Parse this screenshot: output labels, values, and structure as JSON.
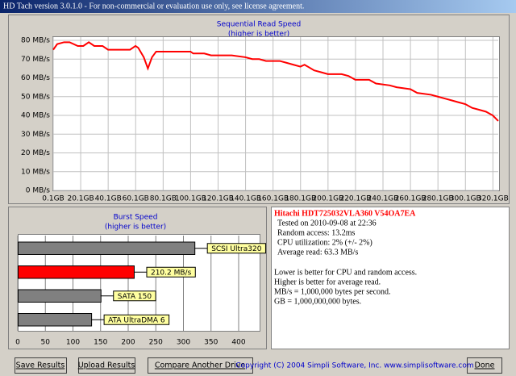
{
  "window": {
    "title": "HD Tach version 3.0.1.0  - For non-commercial or evaluation use only, see license agreement."
  },
  "chart_data": [
    {
      "type": "line",
      "title": "Sequential Read Speed",
      "subtitle": "(higher is better)",
      "color": "#ff0000",
      "grid": true,
      "x": [
        0.1,
        3,
        8,
        12,
        18,
        22,
        26,
        30,
        36,
        40,
        50,
        56,
        60,
        62,
        66,
        69,
        72,
        75,
        90,
        100,
        102,
        110,
        115,
        130,
        140,
        145,
        150,
        155,
        165,
        170,
        175,
        180,
        183,
        190,
        195,
        200,
        210,
        215,
        220,
        230,
        235,
        245,
        250,
        260,
        265,
        275,
        280,
        285,
        290,
        295,
        300,
        305,
        310,
        315,
        320,
        324
      ],
      "values": [
        75,
        78,
        79,
        79,
        77,
        77,
        79,
        77,
        77,
        75,
        75,
        75,
        77,
        76,
        71,
        65,
        71,
        74,
        74,
        74,
        73,
        73,
        72,
        72,
        71,
        70,
        70,
        69,
        69,
        68,
        67,
        66,
        67,
        64,
        63,
        62,
        62,
        61,
        59,
        59,
        57,
        56,
        55,
        54,
        52,
        51,
        50,
        49,
        48,
        47,
        46,
        44,
        43,
        42,
        40,
        37
      ],
      "xlim": [
        0.1,
        324
      ],
      "ylim": [
        0,
        80
      ],
      "xticks": [
        {
          "value": 0.1,
          "label": "0.1GB"
        },
        {
          "value": 20.1,
          "label": "20.1GB"
        },
        {
          "value": 40.1,
          "label": "40.1GB"
        },
        {
          "value": 60.1,
          "label": "60.1GB"
        },
        {
          "value": 80.1,
          "label": "80.1GB"
        },
        {
          "value": 100.1,
          "label": "100.1GB"
        },
        {
          "value": 120.1,
          "label": "120.1GB"
        },
        {
          "value": 140.1,
          "label": "140.1GB"
        },
        {
          "value": 160.1,
          "label": "160.1GB"
        },
        {
          "value": 180.1,
          "label": "180.1GB"
        },
        {
          "value": 200.1,
          "label": "200.1GB"
        },
        {
          "value": 220.1,
          "label": "220.1GB"
        },
        {
          "value": 240.1,
          "label": "240.1GB"
        },
        {
          "value": 260.1,
          "label": "260.1GB"
        },
        {
          "value": 280.1,
          "label": "280.1GB"
        },
        {
          "value": 300.1,
          "label": "300.1GB"
        },
        {
          "value": 320.1,
          "label": "320.1GB"
        }
      ],
      "yticks": [
        {
          "value": 0,
          "label": "0 MB/s"
        },
        {
          "value": 10,
          "label": "10 MB/s"
        },
        {
          "value": 20,
          "label": "20 MB/s"
        },
        {
          "value": 30,
          "label": "30 MB/s"
        },
        {
          "value": 40,
          "label": "40 MB/s"
        },
        {
          "value": 50,
          "label": "50 MB/s"
        },
        {
          "value": 60,
          "label": "60 MB/s"
        },
        {
          "value": 70,
          "label": "70 MB/s"
        },
        {
          "value": 80,
          "label": "80 MB/s"
        }
      ]
    },
    {
      "type": "hbar",
      "title": "Burst Speed",
      "subtitle": "(higher is better)",
      "grid": true,
      "categories": [
        "SCSI Ultra320",
        null,
        "SATA 150",
        "ATA UltraDMA 6"
      ],
      "values": [
        320,
        210.2,
        150,
        133
      ],
      "value_labels": [
        null,
        "210.2 MB/s",
        null,
        null
      ],
      "colors": [
        "#808080",
        "#ff0000",
        "#808080",
        "#808080"
      ],
      "xlim": [
        0,
        400
      ],
      "xticks": [
        0,
        50,
        100,
        150,
        200,
        250,
        300,
        350,
        400
      ]
    }
  ],
  "info": {
    "heading": "Hitachi HDT725032VLA360 V54OA7EA",
    "lines": [
      "Tested on 2010-09-08 at 22:36",
      "Random access: 13.2ms",
      "CPU utilization: 2% (+/- 2%)",
      "Average read: 63.3 MB/s"
    ],
    "notes": [
      "Lower is better for CPU and random access.",
      "Higher is better for average read.",
      "MB/s = 1,000,000 bytes per second.",
      "GB = 1,000,000,000 bytes."
    ]
  },
  "buttons": [
    "Save Results",
    "Upload Results",
    "Compare Another Drive",
    "Done"
  ],
  "copyright": "Copyright (C) 2004 Simpli Software, Inc. www.simplisoftware.com"
}
